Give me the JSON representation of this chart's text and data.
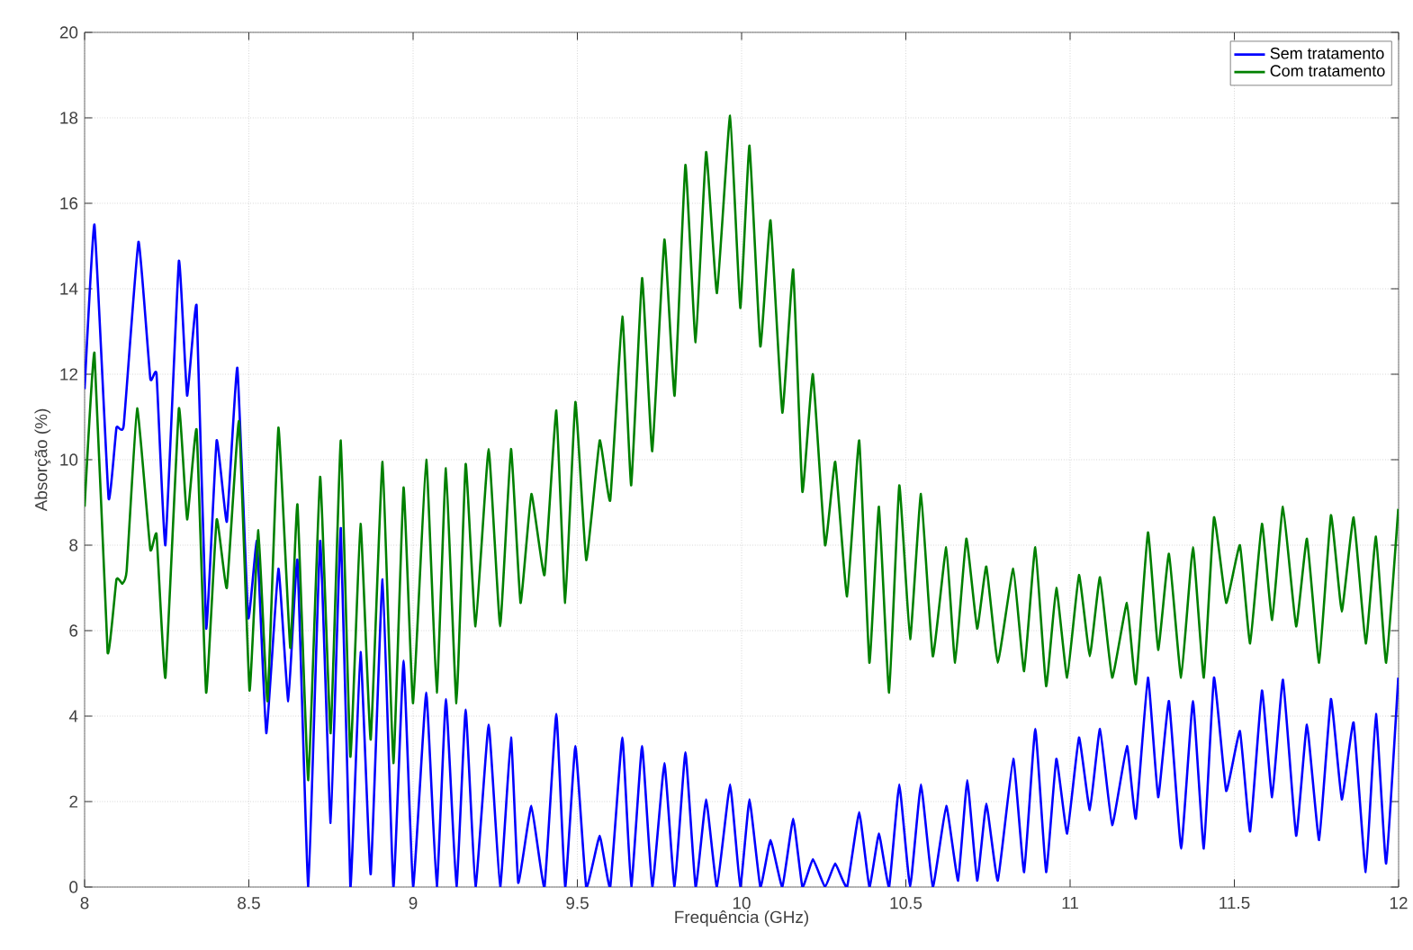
{
  "chart_data": {
    "type": "line",
    "xlabel": "Frequência (GHz)",
    "ylabel": "Absorção (%)",
    "xlim": [
      8,
      12
    ],
    "ylim": [
      0,
      20
    ],
    "xticks": [
      8,
      8.5,
      9,
      9.5,
      10,
      10.5,
      11,
      11.5,
      12
    ],
    "yticks": [
      0,
      2,
      4,
      6,
      8,
      10,
      12,
      14,
      16,
      18,
      20
    ],
    "grid": true,
    "legend": "top right",
    "line_style": "solid",
    "marker": "none",
    "series": [
      {
        "name": "Sem tratamento",
        "color": "#0000ff",
        "x": [
          8.0,
          8.03,
          8.073,
          8.097,
          8.119,
          8.164,
          8.2,
          8.219,
          8.246,
          8.287,
          8.312,
          8.341,
          8.37,
          8.402,
          8.433,
          8.465,
          8.498,
          8.525,
          8.553,
          8.59,
          8.62,
          8.648,
          8.681,
          8.717,
          8.749,
          8.78,
          8.809,
          8.84,
          8.871,
          8.907,
          8.94,
          8.971,
          9.0,
          9.04,
          9.072,
          9.1,
          9.132,
          9.16,
          9.19,
          9.23,
          9.265,
          9.298,
          9.32,
          9.36,
          9.4,
          9.436,
          9.463,
          9.494,
          9.527,
          9.568,
          9.6,
          9.637,
          9.664,
          9.697,
          9.728,
          9.765,
          9.796,
          9.829,
          9.86,
          9.892,
          9.925,
          9.965,
          9.996,
          10.024,
          10.057,
          10.088,
          10.124,
          10.157,
          10.185,
          10.217,
          10.254,
          10.285,
          10.321,
          10.358,
          10.389,
          10.418,
          10.449,
          10.48,
          10.513,
          10.546,
          10.582,
          10.623,
          10.659,
          10.687,
          10.717,
          10.745,
          10.78,
          10.827,
          10.86,
          10.894,
          10.927,
          10.958,
          10.991,
          11.027,
          11.06,
          11.091,
          11.128,
          11.173,
          11.2,
          11.237,
          11.268,
          11.301,
          11.338,
          11.374,
          11.407,
          11.438,
          11.475,
          11.517,
          11.548,
          11.584,
          11.615,
          11.648,
          11.688,
          11.721,
          11.758,
          11.794,
          11.827,
          11.863,
          11.9,
          11.931,
          11.962,
          11.999
        ],
        "values": [
          11.65,
          15.5,
          9.1,
          10.75,
          10.8,
          15.1,
          11.9,
          12.0,
          8.0,
          14.65,
          11.5,
          13.6,
          6.05,
          10.45,
          8.55,
          12.15,
          6.3,
          8.1,
          3.6,
          7.45,
          4.35,
          7.65,
          0,
          8.1,
          1.5,
          8.4,
          0,
          5.5,
          0.3,
          7.2,
          0,
          5.3,
          0,
          4.55,
          0,
          4.4,
          0,
          4.15,
          0,
          3.8,
          0,
          3.5,
          0.1,
          1.9,
          0,
          4.05,
          0,
          3.3,
          0,
          1.2,
          0,
          3.5,
          0,
          3.3,
          0,
          2.9,
          0,
          3.15,
          0,
          2.05,
          0,
          2.4,
          0,
          2.05,
          0,
          1.1,
          0,
          1.6,
          0,
          0.65,
          0,
          0.55,
          0,
          1.75,
          0,
          1.25,
          0,
          2.4,
          0,
          2.4,
          0,
          1.9,
          0.15,
          2.5,
          0.15,
          1.95,
          0.15,
          3.0,
          0.35,
          3.7,
          0.35,
          3.0,
          1.25,
          3.5,
          1.8,
          3.7,
          1.45,
          3.3,
          1.6,
          4.9,
          2.1,
          4.35,
          0.9,
          4.35,
          0.9,
          4.9,
          2.25,
          3.65,
          1.3,
          4.6,
          2.1,
          4.85,
          1.2,
          3.8,
          1.1,
          4.4,
          2.05,
          3.85,
          0.35,
          4.05,
          0.55,
          4.9
        ]
      },
      {
        "name": "Com tratamento",
        "color": "#008000",
        "x": [
          8.0,
          8.03,
          8.07,
          8.097,
          8.115,
          8.128,
          8.16,
          8.2,
          8.219,
          8.246,
          8.287,
          8.312,
          8.341,
          8.37,
          8.402,
          8.433,
          8.47,
          8.502,
          8.529,
          8.557,
          8.59,
          8.626,
          8.648,
          8.681,
          8.717,
          8.749,
          8.78,
          8.809,
          8.84,
          8.871,
          8.907,
          8.94,
          8.971,
          9.0,
          9.04,
          9.072,
          9.1,
          9.132,
          9.16,
          9.19,
          9.23,
          9.265,
          9.298,
          9.327,
          9.36,
          9.4,
          9.436,
          9.463,
          9.494,
          9.527,
          9.568,
          9.6,
          9.637,
          9.664,
          9.697,
          9.728,
          9.765,
          9.796,
          9.829,
          9.86,
          9.892,
          9.925,
          9.965,
          9.996,
          10.024,
          10.057,
          10.088,
          10.124,
          10.157,
          10.185,
          10.217,
          10.254,
          10.285,
          10.321,
          10.358,
          10.389,
          10.418,
          10.449,
          10.48,
          10.513,
          10.546,
          10.582,
          10.623,
          10.65,
          10.684,
          10.717,
          10.745,
          10.78,
          10.827,
          10.86,
          10.894,
          10.927,
          10.958,
          10.991,
          11.027,
          11.06,
          11.091,
          11.128,
          11.173,
          11.2,
          11.237,
          11.268,
          11.301,
          11.338,
          11.374,
          11.407,
          11.438,
          11.475,
          11.517,
          11.548,
          11.584,
          11.615,
          11.648,
          11.688,
          11.721,
          11.758,
          11.794,
          11.827,
          11.863,
          11.9,
          11.931,
          11.962,
          11.999
        ],
        "values": [
          8.9,
          12.5,
          5.5,
          7.2,
          7.1,
          7.4,
          11.2,
          7.9,
          8.25,
          4.9,
          11.2,
          8.6,
          10.7,
          4.55,
          8.6,
          7.0,
          10.9,
          4.6,
          8.35,
          4.35,
          10.75,
          5.6,
          8.95,
          2.5,
          9.6,
          3.6,
          10.45,
          3.05,
          8.5,
          3.45,
          9.95,
          2.9,
          9.35,
          4.3,
          10.0,
          4.55,
          9.8,
          4.3,
          9.9,
          6.1,
          10.25,
          6.1,
          10.25,
          6.65,
          9.2,
          7.3,
          11.15,
          6.65,
          11.35,
          7.65,
          10.45,
          9.05,
          13.35,
          9.4,
          14.25,
          10.2,
          15.15,
          11.5,
          16.9,
          12.75,
          17.2,
          13.9,
          18.05,
          13.55,
          17.35,
          12.65,
          15.6,
          11.1,
          14.45,
          9.25,
          12.0,
          8.0,
          9.95,
          6.8,
          10.45,
          5.25,
          8.9,
          4.55,
          9.4,
          5.8,
          9.2,
          5.4,
          7.95,
          5.25,
          8.15,
          6.05,
          7.5,
          5.25,
          7.45,
          5.05,
          7.95,
          4.7,
          7.0,
          4.9,
          7.3,
          5.4,
          7.25,
          4.9,
          6.65,
          4.75,
          8.3,
          5.55,
          7.8,
          4.9,
          7.95,
          4.9,
          8.65,
          6.65,
          8.0,
          5.7,
          8.5,
          6.25,
          8.9,
          6.1,
          8.15,
          5.25,
          8.7,
          6.45,
          8.65,
          5.7,
          8.2,
          5.25,
          8.85
        ]
      }
    ]
  }
}
